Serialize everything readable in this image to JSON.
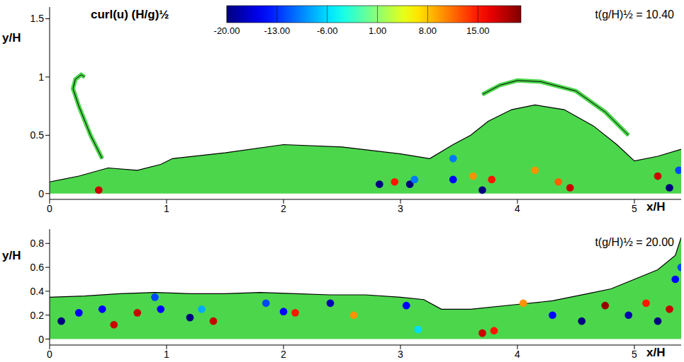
{
  "colorbar": {
    "label": "curl(u) (H/g)½",
    "lim": [
      -20,
      21
    ],
    "ticks": [
      {
        "value": -20,
        "label": "-20.00"
      },
      {
        "value": -13,
        "label": "-13.00"
      },
      {
        "value": -6,
        "label": "-6.00"
      },
      {
        "value": 1,
        "label": "1.00"
      },
      {
        "value": 8,
        "label": "8.00"
      },
      {
        "value": 15,
        "label": "15.00"
      }
    ]
  },
  "chart_data": [
    {
      "type": "scatter",
      "annotation": "t(g/H)½ = 10.40",
      "x_label": "x/H",
      "y_label": "y/H",
      "xlim": [
        0,
        5.4
      ],
      "ylim": [
        -0.05,
        1.6
      ],
      "xticks": [
        0,
        1,
        2,
        3,
        4,
        5
      ],
      "yticks": [
        0,
        0.5,
        1,
        1.5
      ],
      "color": "#4cd64c",
      "surface": {
        "x": [
          0,
          0.25,
          0.5,
          0.75,
          0.95,
          1.05,
          1.5,
          2,
          2.5,
          3,
          3.25,
          3.45,
          3.6,
          3.75,
          3.95,
          4.15,
          4.4,
          4.65,
          4.85,
          5.0,
          5.2,
          5.4
        ],
        "y": [
          0.1,
          0.15,
          0.22,
          0.2,
          0.25,
          0.3,
          0.35,
          0.42,
          0.4,
          0.34,
          0.3,
          0.42,
          0.5,
          0.62,
          0.72,
          0.76,
          0.72,
          0.58,
          0.42,
          0.28,
          0.32,
          0.38
        ]
      },
      "splash": [
        {
          "x": [
            0.45,
            0.35,
            0.25,
            0.2,
            0.22,
            0.27,
            0.3
          ],
          "y": [
            0.3,
            0.5,
            0.75,
            0.9,
            0.98,
            1.02,
            1.0
          ]
        },
        {
          "x": [
            3.7,
            3.85,
            4.0,
            4.2,
            4.5,
            4.75,
            4.95
          ],
          "y": [
            0.85,
            0.93,
            0.97,
            0.96,
            0.88,
            0.7,
            0.5
          ]
        }
      ],
      "vortices": {
        "x": [
          0.42,
          2.82,
          2.95,
          3.08,
          3.12,
          3.45,
          3.7,
          3.78,
          3.62,
          4.35,
          4.45,
          4.15,
          5.2,
          5.3,
          5.38,
          3.45
        ],
        "y": [
          0.03,
          0.08,
          0.1,
          0.08,
          0.12,
          0.12,
          0.03,
          0.12,
          0.15,
          0.1,
          0.05,
          0.2,
          0.15,
          0.05,
          0.2,
          0.3
        ],
        "curl": [
          18,
          -20,
          15,
          -20,
          -10,
          -15,
          -20,
          15,
          10,
          12,
          18,
          10,
          18,
          -20,
          -12,
          -10
        ]
      }
    },
    {
      "type": "scatter",
      "annotation": "t(g/H)½ = 20.00",
      "x_label": "x/H",
      "y_label": "y/H",
      "xlim": [
        0,
        5.4
      ],
      "ylim": [
        -0.05,
        0.92
      ],
      "xticks": [
        0,
        1,
        2,
        3,
        4,
        5
      ],
      "yticks": [
        0,
        0.2,
        0.4,
        0.6,
        0.8
      ],
      "color": "#4cd64c",
      "surface": {
        "x": [
          0,
          0.3,
          0.6,
          0.9,
          1.2,
          1.5,
          1.8,
          2.1,
          2.4,
          2.7,
          3.0,
          3.2,
          3.35,
          3.6,
          4.0,
          4.3,
          4.6,
          4.8,
          5.0,
          5.2,
          5.35,
          5.4
        ],
        "y": [
          0.35,
          0.36,
          0.38,
          0.39,
          0.38,
          0.38,
          0.39,
          0.38,
          0.37,
          0.37,
          0.35,
          0.33,
          0.25,
          0.25,
          0.29,
          0.32,
          0.38,
          0.42,
          0.5,
          0.58,
          0.7,
          0.85
        ]
      },
      "splash": [],
      "vortices": {
        "x": [
          0.1,
          0.25,
          0.45,
          0.55,
          0.75,
          0.95,
          0.9,
          1.2,
          1.4,
          1.3,
          1.85,
          2.0,
          2.1,
          2.4,
          2.6,
          3.05,
          3.15,
          3.7,
          3.8,
          4.05,
          4.3,
          4.55,
          4.75,
          4.95,
          5.1,
          5.2,
          5.3,
          5.35,
          5.4
        ],
        "y": [
          0.15,
          0.22,
          0.25,
          0.12,
          0.22,
          0.25,
          0.35,
          0.18,
          0.15,
          0.25,
          0.3,
          0.23,
          0.22,
          0.3,
          0.2,
          0.28,
          0.08,
          0.05,
          0.07,
          0.3,
          0.2,
          0.15,
          0.28,
          0.2,
          0.3,
          0.15,
          0.25,
          0.5,
          0.6
        ],
        "curl": [
          -20,
          -15,
          -15,
          18,
          18,
          -15,
          -12,
          -20,
          18,
          -8,
          -12,
          -15,
          15,
          -18,
          10,
          -15,
          -6,
          18,
          15,
          10,
          -15,
          -20,
          20,
          -18,
          15,
          -20,
          18,
          -15,
          -12
        ]
      }
    }
  ]
}
